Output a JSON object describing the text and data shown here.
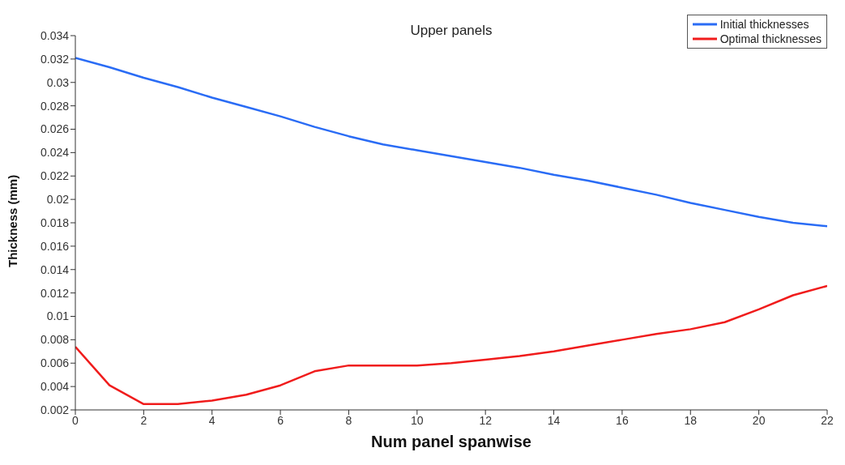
{
  "chart_data": {
    "type": "line",
    "title": "Upper panels",
    "xlabel": "Num panel spanwise",
    "ylabel": "Thickness (mm)",
    "x": [
      0,
      1,
      2,
      3,
      4,
      5,
      6,
      7,
      8,
      9,
      10,
      11,
      12,
      13,
      14,
      15,
      16,
      17,
      18,
      19,
      20,
      21,
      22
    ],
    "series": [
      {
        "name": "Initial thicknesses",
        "color": "#2a6cf5",
        "values": [
          0.0321,
          0.0313,
          0.0304,
          0.0296,
          0.0287,
          0.0279,
          0.0271,
          0.0262,
          0.0254,
          0.0247,
          0.0242,
          0.0237,
          0.0232,
          0.0227,
          0.0221,
          0.0216,
          0.021,
          0.0204,
          0.0197,
          0.0191,
          0.0185,
          0.018,
          0.0177
        ]
      },
      {
        "name": "Optimal thicknesses",
        "color": "#f01c1c",
        "values": [
          0.0074,
          0.0041,
          0.0025,
          0.0025,
          0.0028,
          0.0033,
          0.0041,
          0.0053,
          0.0058,
          0.0058,
          0.0058,
          0.006,
          0.0063,
          0.0066,
          0.007,
          0.0075,
          0.008,
          0.0085,
          0.0089,
          0.0095,
          0.0106,
          0.0118,
          0.0126
        ]
      }
    ],
    "xlim": [
      0,
      22
    ],
    "xticks": [
      0,
      2,
      4,
      6,
      8,
      10,
      12,
      14,
      16,
      18,
      20,
      22
    ],
    "ylim": [
      0.002,
      0.034
    ],
    "yticks": [
      0.002,
      0.004,
      0.006,
      0.008,
      0.01,
      0.012,
      0.014,
      0.016,
      0.018,
      0.02,
      0.022,
      0.024,
      0.026,
      0.028,
      0.03,
      0.032,
      0.034
    ],
    "grid": false,
    "legend": "top right",
    "marker": "none",
    "line_style": "solid"
  }
}
